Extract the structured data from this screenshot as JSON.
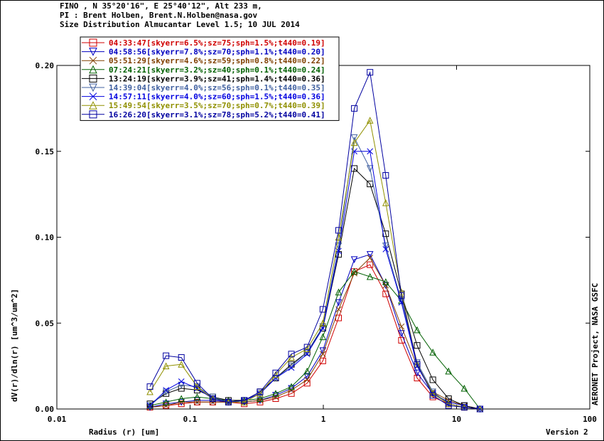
{
  "header": {
    "line1": "FINO , N 35°20'16\", E 25°40'12\", Alt 233 m,",
    "line2": "PI : Brent Holben, Brent.N.Holben@nasa.gov",
    "line3": "Size Distribution Almucantar Level 1.5; 10 JUL 2014"
  },
  "side_label": "AERONET Project, NASA GSFC",
  "version_label": "Version 2",
  "chart_data": {
    "type": "line",
    "xlabel": "Radius (r) [um]",
    "ylabel": "dV(r)/dln(r) [um^3/um^2]",
    "xscale": "log",
    "xlim": [
      0.01,
      100
    ],
    "ylim": [
      0,
      0.2
    ],
    "x_ticks": [
      "0.01",
      "0.1",
      "1",
      "10",
      "100"
    ],
    "y_ticks": [
      "0.00",
      "0.05",
      "0.10",
      "0.15",
      "0.20"
    ],
    "legend_position": "top-left",
    "x": [
      0.05,
      0.066,
      0.086,
      0.113,
      0.148,
      0.194,
      0.255,
      0.335,
      0.439,
      0.576,
      0.756,
      0.992,
      1.302,
      1.708,
      2.241,
      2.94,
      3.857,
      5.06,
      6.639,
      8.71,
      11.43,
      14.99
    ],
    "series": [
      {
        "name": "04:33:47[skyerr=6.5%;sz=75;sph=1.5%;t440=0.19]",
        "color": "#d00000",
        "marker": "square",
        "values": [
          0.001,
          0.002,
          0.003,
          0.004,
          0.004,
          0.004,
          0.003,
          0.004,
          0.006,
          0.009,
          0.015,
          0.028,
          0.053,
          0.08,
          0.084,
          0.067,
          0.04,
          0.018,
          0.007,
          0.003,
          0.001,
          0.0
        ]
      },
      {
        "name": "04:58:56[skyerr=7.8%;sz=70;sph=1.1%;t440=0.20]",
        "color": "#0000c0",
        "marker": "triangle-down",
        "values": [
          0.001,
          0.003,
          0.004,
          0.005,
          0.005,
          0.004,
          0.004,
          0.005,
          0.008,
          0.012,
          0.019,
          0.034,
          0.062,
          0.087,
          0.09,
          0.072,
          0.044,
          0.021,
          0.009,
          0.004,
          0.002,
          0.0
        ]
      },
      {
        "name": "05:51:29[skyerr=4.6%;sz=59;sph=0.8%;t440=0.22]",
        "color": "#804000",
        "marker": "x",
        "values": [
          0.001,
          0.002,
          0.004,
          0.004,
          0.004,
          0.004,
          0.004,
          0.005,
          0.007,
          0.011,
          0.017,
          0.032,
          0.058,
          0.079,
          0.088,
          0.072,
          0.048,
          0.025,
          0.01,
          0.005,
          0.002,
          0.0
        ]
      },
      {
        "name": "07:24:21[skyerr=3.2%;sz=40;sph=0.1%;t440=0.24]",
        "color": "#006000",
        "marker": "triangle-up",
        "values": [
          0.002,
          0.004,
          0.006,
          0.007,
          0.006,
          0.005,
          0.005,
          0.006,
          0.009,
          0.013,
          0.022,
          0.042,
          0.068,
          0.08,
          0.077,
          0.074,
          0.063,
          0.046,
          0.033,
          0.022,
          0.012,
          0.0
        ]
      },
      {
        "name": "13:24:19[skyerr=3.9%;sz=41;sph=1.4%;t440=0.36]",
        "color": "#000000",
        "marker": "square",
        "values": [
          0.003,
          0.009,
          0.012,
          0.011,
          0.007,
          0.005,
          0.005,
          0.01,
          0.018,
          0.026,
          0.033,
          0.047,
          0.09,
          0.14,
          0.131,
          0.102,
          0.067,
          0.037,
          0.017,
          0.006,
          0.002,
          0.0
        ]
      },
      {
        "name": "14:39:04[skyerr=4.0%;sz=56;sph=0.1%;t440=0.35]",
        "color": "#4060a0",
        "marker": "triangle-down",
        "values": [
          0.002,
          0.01,
          0.014,
          0.013,
          0.007,
          0.004,
          0.005,
          0.009,
          0.018,
          0.025,
          0.033,
          0.048,
          0.095,
          0.158,
          0.14,
          0.095,
          0.063,
          0.027,
          0.01,
          0.003,
          0.001,
          0.0
        ]
      },
      {
        "name": "14:57:11[skyerr=4.0%;sz=60;sph=1.5%;t440=0.36]",
        "color": "#0000e0",
        "marker": "x",
        "values": [
          0.002,
          0.011,
          0.016,
          0.012,
          0.006,
          0.004,
          0.005,
          0.009,
          0.018,
          0.024,
          0.032,
          0.047,
          0.092,
          0.15,
          0.15,
          0.093,
          0.062,
          0.025,
          0.009,
          0.003,
          0.001,
          0.0
        ]
      },
      {
        "name": "15:49:54[skyerr=3.5%;sz=70;sph=0.7%;t440=0.39]",
        "color": "#909000",
        "marker": "triangle-up",
        "values": [
          0.01,
          0.025,
          0.026,
          0.013,
          0.006,
          0.004,
          0.004,
          0.009,
          0.02,
          0.03,
          0.035,
          0.05,
          0.1,
          0.155,
          0.168,
          0.12,
          0.068,
          0.026,
          0.009,
          0.003,
          0.001,
          0.0
        ]
      },
      {
        "name": "16:26:20[skyerr=3.1%;sz=78;sph=5.2%;t440=0.41]",
        "color": "#0000a0",
        "marker": "square",
        "values": [
          0.013,
          0.031,
          0.03,
          0.015,
          0.006,
          0.004,
          0.005,
          0.01,
          0.021,
          0.032,
          0.036,
          0.058,
          0.104,
          0.175,
          0.196,
          0.136,
          0.066,
          0.026,
          0.008,
          0.002,
          0.001,
          0.0
        ]
      }
    ]
  }
}
